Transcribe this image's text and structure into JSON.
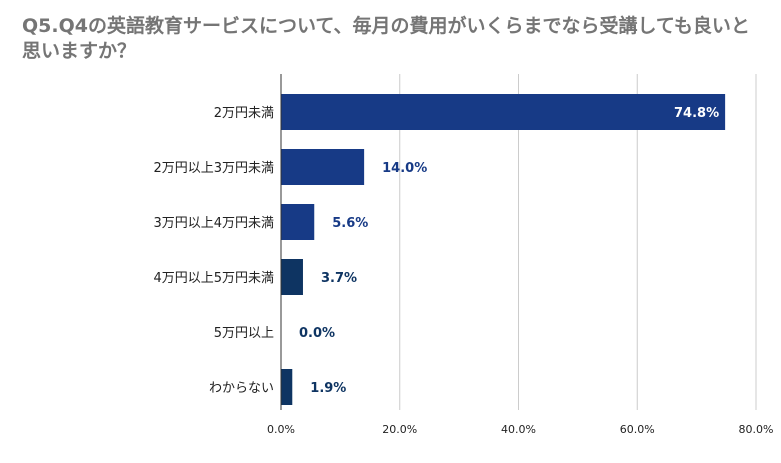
{
  "chart_data": {
    "type": "bar",
    "orientation": "horizontal",
    "title": "Q5.Q4の英語教育サービスについて、毎月の費用がいくらまでなら受講しても良いと思いますか？",
    "categories": [
      "2万円未満",
      "2万円以上3万円未満",
      "3万円以上4万円未満",
      "4万円以上5万円未満",
      "5万円以上",
      "わからない"
    ],
    "values": [
      74.8,
      14.0,
      5.6,
      3.7,
      0.0,
      1.9
    ],
    "data_labels": [
      "74.8%",
      "14.0%",
      "5.6%",
      "3.7%",
      "0.0%",
      "1.9%"
    ],
    "xlim": [
      0,
      80
    ],
    "xticks": [
      0,
      20,
      40,
      60,
      80
    ],
    "xtick_labels": [
      "0.0%",
      "20.0%",
      "40.0%",
      "60.0%",
      "80.0%"
    ],
    "grid": true,
    "legend": "none",
    "colors": [
      "#173a86",
      "#173a86",
      "#173a86",
      "#0e3462",
      "#0e3462",
      "#0e3462"
    ],
    "label_inside_color": "#ffffff",
    "label_outside_color": "#173a86"
  }
}
